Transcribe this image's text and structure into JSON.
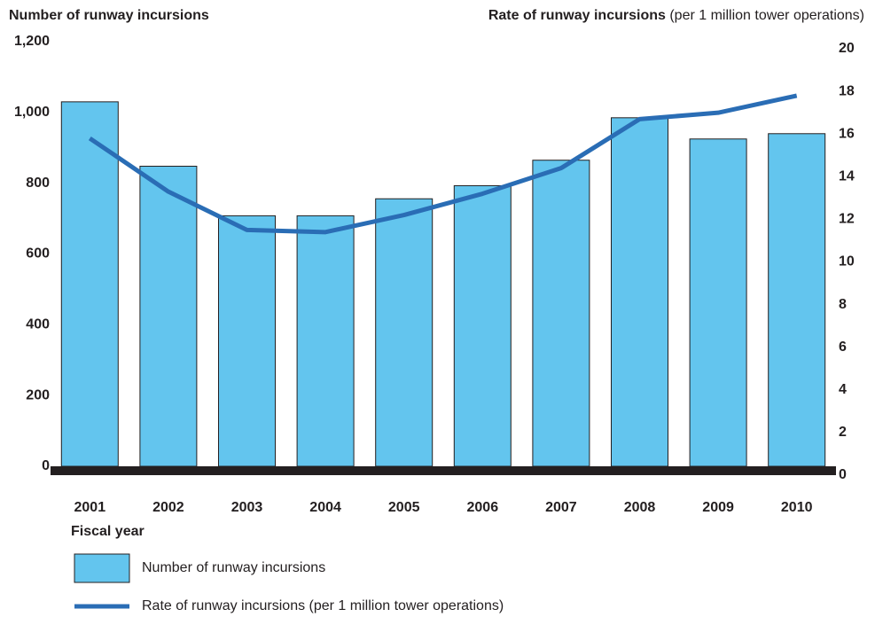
{
  "chart_data": {
    "type": "bar_line",
    "ylabel": "Number of runway incursions",
    "y2label": "Rate of runway incursions",
    "y2label_note": "(per 1 million tower operations)",
    "xlabel": "Fiscal year",
    "categories": [
      "2001",
      "2002",
      "2003",
      "2004",
      "2005",
      "2006",
      "2007",
      "2008",
      "2009",
      "2010"
    ],
    "series": [
      {
        "name": "Number of runway incursions",
        "type": "bar",
        "color": "#63c5ee",
        "values": [
          1030,
          848,
          708,
          708,
          756,
          793,
          865,
          985,
          925,
          940
        ]
      },
      {
        "name": "Rate of runway incursions (per 1 million tower operations)",
        "type": "line",
        "axis": "y2",
        "color": "#2a6db5",
        "values": [
          15.8,
          13.3,
          11.5,
          11.4,
          12.2,
          13.2,
          14.4,
          16.7,
          17.0,
          17.8
        ]
      }
    ],
    "ylim": [
      0,
      1200
    ],
    "yticks": [
      0,
      200,
      400,
      600,
      800,
      {
        "value": 1000,
        "label": "1,000"
      },
      {
        "value": 1200,
        "label": "1,200"
      }
    ],
    "y2lim": [
      0,
      20
    ],
    "y2ticks": [
      0,
      2,
      4,
      6,
      8,
      10,
      12,
      14,
      16,
      18,
      20
    ]
  }
}
